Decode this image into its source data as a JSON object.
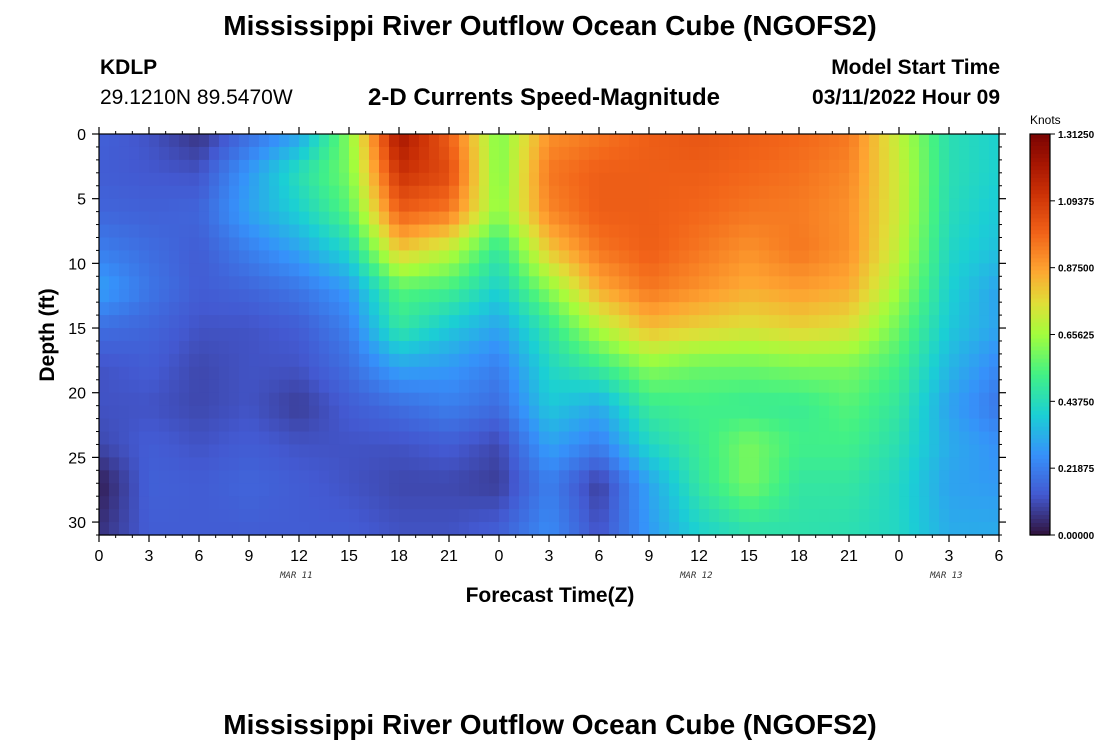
{
  "page": {
    "title": "Mississippi River Outflow Ocean Cube (NGOFS2)",
    "station_id": "KDLP",
    "coordinates": "29.1210N  89.5470W",
    "subtitle": "2-D Currents Speed-Magnitude",
    "model_run_label": "Model Start Time",
    "model_run_value": "03/11/2022 Hour 09",
    "bottom_title": "Mississippi River Outflow Ocean Cube (NGOFS2)"
  },
  "chart_data": {
    "type": "heatmap",
    "title": "2-D Currents Speed-Magnitude",
    "xlabel": "Forecast Time(Z)",
    "ylabel": "Depth (ft)",
    "x_tick_labels": [
      "0",
      "3",
      "6",
      "9",
      "12",
      "15",
      "18",
      "21",
      "0",
      "3",
      "6",
      "9",
      "12",
      "15",
      "18",
      "21",
      "0",
      "3",
      "6"
    ],
    "x_hours_range": [
      0,
      54
    ],
    "date_labels": [
      {
        "label": "MAR 11",
        "hour": 12
      },
      {
        "label": "MAR 12",
        "hour": 36
      },
      {
        "label": "MAR 13",
        "hour": 51
      }
    ],
    "y_ticks": [
      0,
      5,
      10,
      15,
      20,
      25,
      30
    ],
    "ylim": [
      0,
      31
    ],
    "y_inverted": true,
    "colorbar": {
      "units": "Knots",
      "ticks": [
        "1.31250",
        "1.09375",
        "0.87500",
        "0.65625",
        "0.43750",
        "0.21875",
        "0.00000"
      ],
      "range": [
        0,
        1.3125
      ],
      "colormap": "turbo"
    },
    "speed_grid": {
      "x_hours": [
        0,
        3,
        6,
        9,
        12,
        15,
        18,
        21,
        24,
        27,
        30,
        33,
        36,
        39,
        42,
        45,
        48,
        51,
        54
      ],
      "depth_ft": [
        0,
        3,
        6,
        9,
        12,
        15,
        18,
        21,
        24,
        27,
        31
      ],
      "values_knots": [
        [
          0.15,
          0.12,
          0.06,
          0.18,
          0.3,
          0.62,
          1.22,
          1.0,
          0.6,
          0.9,
          0.95,
          1.0,
          1.02,
          1.0,
          0.98,
          0.95,
          0.7,
          0.45,
          0.4
        ],
        [
          0.14,
          0.13,
          0.12,
          0.28,
          0.45,
          0.6,
          1.12,
          1.05,
          0.6,
          0.95,
          1.0,
          1.0,
          1.0,
          0.98,
          0.96,
          0.92,
          0.72,
          0.45,
          0.4
        ],
        [
          0.16,
          0.15,
          0.16,
          0.3,
          0.4,
          0.55,
          1.0,
          0.95,
          0.62,
          0.92,
          1.0,
          1.0,
          0.98,
          0.95,
          0.94,
          0.9,
          0.72,
          0.44,
          0.38
        ],
        [
          0.22,
          0.18,
          0.14,
          0.22,
          0.3,
          0.42,
          0.8,
          0.7,
          0.48,
          0.8,
          0.95,
          1.0,
          0.95,
          0.9,
          0.95,
          0.9,
          0.7,
          0.42,
          0.36
        ],
        [
          0.3,
          0.2,
          0.14,
          0.16,
          0.2,
          0.28,
          0.55,
          0.52,
          0.4,
          0.62,
          0.85,
          0.95,
          0.9,
          0.85,
          0.88,
          0.85,
          0.65,
          0.4,
          0.3
        ],
        [
          0.18,
          0.16,
          0.12,
          0.12,
          0.14,
          0.22,
          0.48,
          0.38,
          0.3,
          0.48,
          0.68,
          0.82,
          0.78,
          0.75,
          0.78,
          0.75,
          0.58,
          0.38,
          0.3
        ],
        [
          0.12,
          0.14,
          0.1,
          0.12,
          0.12,
          0.18,
          0.3,
          0.28,
          0.22,
          0.42,
          0.5,
          0.62,
          0.58,
          0.58,
          0.6,
          0.6,
          0.52,
          0.34,
          0.24
        ],
        [
          0.12,
          0.12,
          0.1,
          0.12,
          0.08,
          0.14,
          0.18,
          0.22,
          0.18,
          0.38,
          0.32,
          0.5,
          0.52,
          0.5,
          0.5,
          0.55,
          0.48,
          0.3,
          0.2
        ],
        [
          0.1,
          0.14,
          0.12,
          0.14,
          0.12,
          0.12,
          0.12,
          0.14,
          0.1,
          0.3,
          0.22,
          0.42,
          0.5,
          0.6,
          0.52,
          0.52,
          0.45,
          0.32,
          0.26
        ],
        [
          0.02,
          0.15,
          0.14,
          0.16,
          0.14,
          0.12,
          0.1,
          0.1,
          0.08,
          0.22,
          0.08,
          0.3,
          0.48,
          0.6,
          0.48,
          0.48,
          0.42,
          0.3,
          0.28
        ],
        [
          0.06,
          0.14,
          0.14,
          0.14,
          0.14,
          0.14,
          0.12,
          0.12,
          0.15,
          0.25,
          0.12,
          0.28,
          0.4,
          0.45,
          0.46,
          0.45,
          0.42,
          0.32,
          0.32
        ]
      ]
    }
  }
}
